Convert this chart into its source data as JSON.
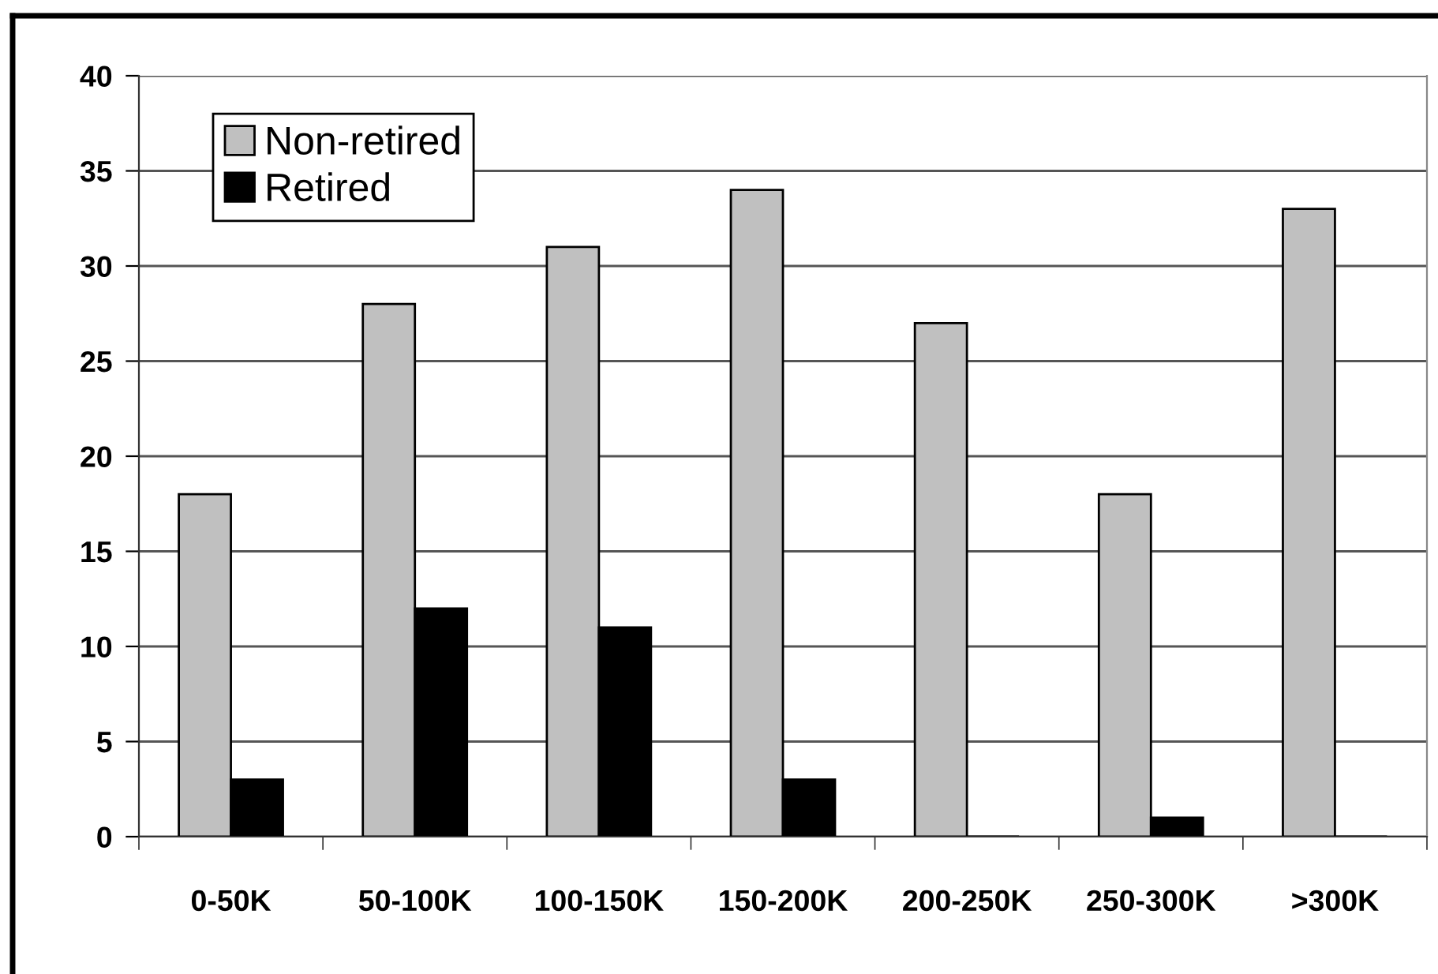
{
  "chart_data": {
    "type": "bar",
    "categories": [
      "0-50K",
      "50-100K",
      "100-150K",
      "150-200K",
      "200-250K",
      "250-300K",
      ">300K"
    ],
    "series": [
      {
        "name": "Non-retired",
        "color": "#c0c0c0",
        "values": [
          18,
          28,
          31,
          34,
          27,
          18,
          33
        ]
      },
      {
        "name": "Retired",
        "color": "#000000",
        "values": [
          3,
          12,
          11,
          3,
          0,
          1,
          0
        ]
      }
    ],
    "ylim": [
      0,
      40
    ],
    "yticks": [
      0,
      5,
      10,
      15,
      20,
      25,
      30,
      35,
      40
    ],
    "grid": "y",
    "legend": "top left"
  }
}
